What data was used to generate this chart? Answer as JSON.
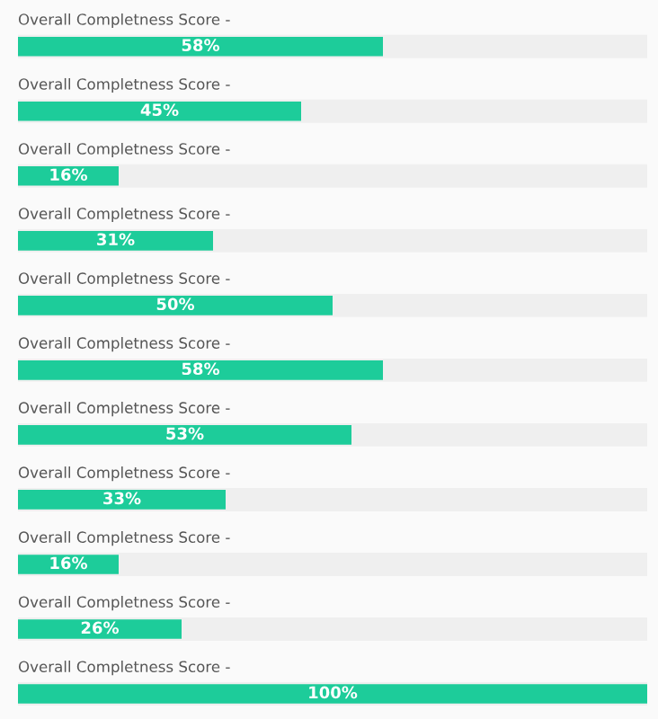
{
  "chart_data": {
    "type": "bar",
    "orientation": "horizontal",
    "categories": [
      "Overall Completness Score -",
      "Overall Completness Score -",
      "Overall Completness Score -",
      "Overall Completness Score -",
      "Overall Completness Score -",
      "Overall Completness Score -",
      "Overall Completness Score -",
      "Overall Completness Score -",
      "Overall Completness Score -",
      "Overall Completness Score -",
      "Overall Completness Score -"
    ],
    "values": [
      58,
      45,
      16,
      31,
      50,
      58,
      53,
      33,
      16,
      26,
      100
    ],
    "value_labels": [
      "58%",
      "45%",
      "16%",
      "31%",
      "50%",
      "58%",
      "53%",
      "33%",
      "16%",
      "26%",
      "100%"
    ],
    "color": "#1dcc9a",
    "xlim": [
      0,
      100
    ]
  }
}
